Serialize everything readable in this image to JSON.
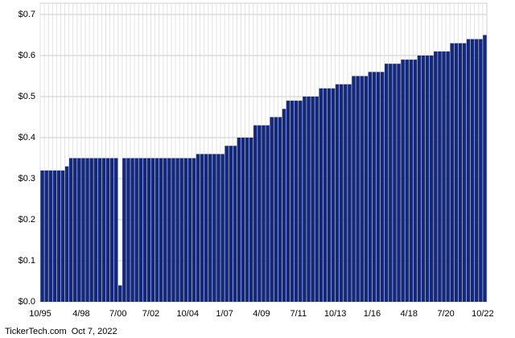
{
  "chart_data": {
    "type": "bar",
    "categories": [
      "10/95",
      null,
      null,
      null,
      null,
      null,
      null,
      null,
      null,
      null,
      "4/98",
      null,
      null,
      null,
      null,
      null,
      null,
      null,
      null,
      "7/00",
      null,
      null,
      null,
      null,
      null,
      null,
      null,
      "7/02",
      null,
      null,
      null,
      null,
      null,
      null,
      null,
      null,
      "10/04",
      null,
      null,
      null,
      null,
      null,
      null,
      null,
      null,
      "1/07",
      null,
      null,
      null,
      null,
      null,
      null,
      null,
      null,
      "4/09",
      null,
      null,
      null,
      null,
      null,
      null,
      null,
      null,
      "7/11",
      null,
      null,
      null,
      null,
      null,
      null,
      null,
      null,
      "10/13",
      null,
      null,
      null,
      null,
      null,
      null,
      null,
      null,
      "1/16",
      null,
      null,
      null,
      null,
      null,
      null,
      null,
      null,
      "4/18",
      null,
      null,
      null,
      null,
      null,
      null,
      null,
      null,
      "7/20",
      null,
      null,
      null,
      null,
      null,
      null,
      null,
      null,
      "10/22"
    ],
    "values": [
      0.32,
      0.32,
      0.32,
      0.32,
      0.32,
      0.32,
      0.33,
      0.35,
      0.35,
      0.35,
      0.35,
      0.35,
      0.35,
      0.35,
      0.35,
      0.35,
      0.35,
      0.35,
      0.35,
      0.04,
      0.35,
      0.35,
      0.35,
      0.35,
      0.35,
      0.35,
      0.35,
      0.35,
      0.35,
      0.35,
      0.35,
      0.35,
      0.35,
      0.35,
      0.35,
      0.35,
      0.35,
      0.35,
      0.36,
      0.36,
      0.36,
      0.36,
      0.36,
      0.36,
      0.36,
      0.38,
      0.38,
      0.38,
      0.4,
      0.4,
      0.4,
      0.4,
      0.43,
      0.43,
      0.43,
      0.43,
      0.45,
      0.45,
      0.45,
      0.47,
      0.49,
      0.49,
      0.49,
      0.49,
      0.5,
      0.5,
      0.5,
      0.5,
      0.52,
      0.52,
      0.52,
      0.52,
      0.53,
      0.53,
      0.53,
      0.53,
      0.55,
      0.55,
      0.55,
      0.55,
      0.56,
      0.56,
      0.56,
      0.56,
      0.58,
      0.58,
      0.58,
      0.58,
      0.59,
      0.59,
      0.59,
      0.59,
      0.6,
      0.6,
      0.6,
      0.6,
      0.61,
      0.61,
      0.61,
      0.61,
      0.63,
      0.63,
      0.63,
      0.63,
      0.64,
      0.64,
      0.64,
      0.64,
      0.65
    ],
    "color": "#14297c",
    "ylim": [
      0,
      0.7
    ],
    "yticks": [
      {
        "value": 0,
        "label": "$0.0"
      },
      {
        "value": 0.1,
        "label": "$0.1"
      },
      {
        "value": 0.2,
        "label": "$0.2"
      },
      {
        "value": 0.3,
        "label": "$0.3"
      },
      {
        "value": 0.4,
        "label": "$0.4"
      },
      {
        "value": 0.5,
        "label": "$0.5"
      },
      {
        "value": 0.6,
        "label": "$0.6"
      },
      {
        "value": 0.7,
        "label": "$0.7"
      }
    ],
    "grid": true,
    "footer": "TickerTech.com  Oct 7, 2022"
  }
}
